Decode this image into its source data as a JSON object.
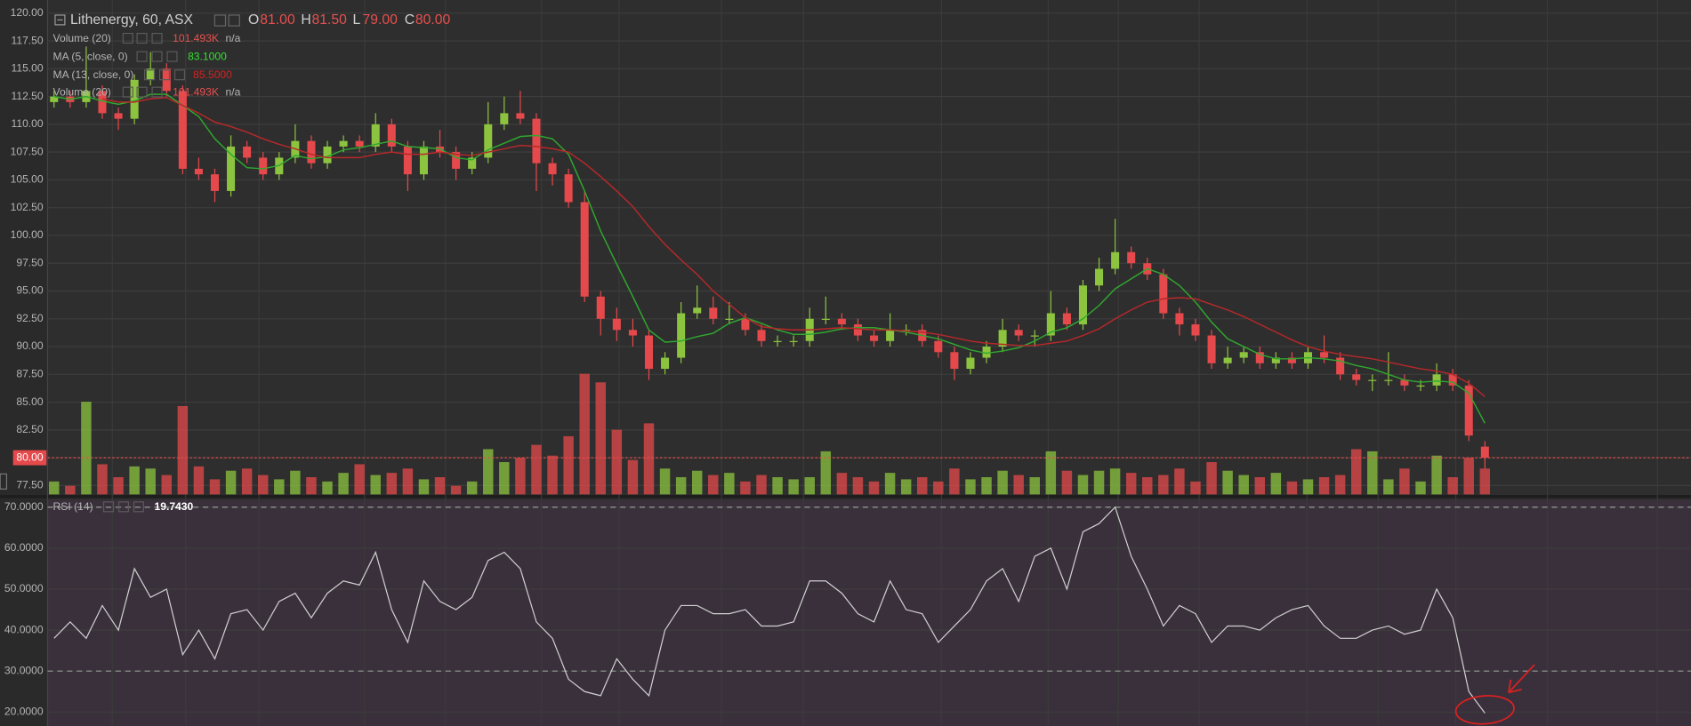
{
  "chart_data": [
    {
      "type": "candlestick",
      "title": "Lithenergy, 60, ASX",
      "ohlc": [
        {
          "name": "O",
          "label": "81.00"
        },
        {
          "name": "H",
          "label": "81.50"
        },
        {
          "name": "L",
          "label": "79.00"
        },
        {
          "name": "C",
          "label": "80.00"
        }
      ],
      "volume_legend": {
        "name": "Volume (20)",
        "label": "101.493K",
        "note": "n/a"
      },
      "open": [
        112,
        112.5,
        112,
        113,
        111,
        110.5,
        114,
        115,
        113,
        106,
        105.5,
        104,
        108,
        107,
        105.5,
        107,
        108.5,
        106.5,
        108,
        108.5,
        108,
        110,
        108,
        105.5,
        108,
        107.5,
        106,
        107,
        110,
        111,
        110.5,
        106.5,
        105.5,
        103,
        94.5,
        92.5,
        91.5,
        91,
        88,
        89,
        93,
        93.5,
        92.5,
        92.5,
        91.5,
        90.5,
        90.5,
        90.5,
        92.5,
        92.5,
        92,
        91,
        90.5,
        91.5,
        91.5,
        90.5,
        89.5,
        88,
        89,
        90,
        91.5,
        91,
        91,
        93,
        92,
        95.5,
        97,
        98.5,
        97.5,
        96.5,
        93,
        92,
        91,
        88.5,
        89,
        89.5,
        88.5,
        89,
        88.5,
        89.5,
        89,
        87.5,
        87,
        87,
        87,
        86.5,
        86.5,
        87.5,
        86.5,
        81
      ],
      "high": [
        113,
        113,
        117,
        113.5,
        111.5,
        114.5,
        116.5,
        115.5,
        113.5,
        107,
        106,
        109,
        108.5,
        107.5,
        107.5,
        110,
        109,
        108.5,
        109,
        109,
        111,
        110.5,
        108.5,
        108.5,
        109.5,
        108,
        107.5,
        112,
        112.5,
        113,
        111,
        107,
        106,
        104,
        95,
        93.5,
        92.5,
        91.5,
        89.5,
        94,
        95.5,
        94.5,
        94,
        93,
        92,
        91,
        91,
        93.5,
        94.5,
        93,
        92.5,
        91.5,
        93,
        92,
        92,
        91,
        90,
        89.5,
        90.5,
        92.5,
        92,
        91.5,
        95,
        93.5,
        96,
        98,
        101.5,
        99,
        98,
        97,
        93.5,
        92.5,
        91.5,
        90,
        90,
        90,
        89.5,
        89.5,
        90,
        91,
        89.5,
        88,
        87.5,
        89.5,
        87.5,
        87,
        88.5,
        88,
        87,
        81.5
      ],
      "low": [
        111.5,
        111.5,
        111.5,
        110.5,
        109.5,
        110,
        113.5,
        112.5,
        105.5,
        105,
        103,
        103.5,
        106.5,
        105,
        105,
        106.5,
        106,
        106,
        107.5,
        107.5,
        107.5,
        107.5,
        104,
        105,
        107,
        105,
        105.5,
        106.5,
        109.5,
        110,
        104,
        104.5,
        102.5,
        94,
        91,
        90.5,
        90,
        87,
        87.5,
        88.5,
        92.5,
        92,
        92,
        91,
        90,
        90,
        90,
        90,
        92,
        91.5,
        90.5,
        90,
        90,
        91,
        90,
        89,
        87,
        87.5,
        88.5,
        89.5,
        90.5,
        90,
        90.5,
        91.5,
        91.5,
        95,
        96.5,
        97,
        96,
        92.5,
        91,
        90.5,
        88,
        88,
        88.5,
        88,
        88,
        88,
        88,
        88.5,
        87,
        86.5,
        86,
        86.5,
        86,
        86,
        86,
        86,
        81.5,
        79
      ],
      "close": [
        112.5,
        112,
        113,
        111,
        110.5,
        114,
        115,
        113,
        106,
        105.5,
        104,
        108,
        107,
        105.5,
        107,
        108.5,
        106.5,
        108,
        108.5,
        108,
        110,
        108,
        105.5,
        108,
        107.5,
        106,
        107,
        110,
        111,
        110.5,
        106.5,
        105.5,
        103,
        94.5,
        92.5,
        91.5,
        91,
        88,
        89,
        93,
        93.5,
        92.5,
        92.5,
        91.5,
        90.5,
        90.5,
        90.5,
        92.5,
        92.5,
        92,
        91,
        90.5,
        91.5,
        91.5,
        90.5,
        89.5,
        88,
        89,
        90,
        91.5,
        91,
        91,
        93,
        92,
        95.5,
        97,
        98.5,
        97.5,
        96.5,
        93,
        92,
        91,
        88.5,
        89,
        89.5,
        88.5,
        89,
        88.5,
        89.5,
        89,
        87.5,
        87,
        87,
        87,
        86.5,
        86.5,
        87.5,
        86.5,
        82,
        80
      ],
      "volume": [
        60,
        40,
        430,
        140,
        80,
        130,
        120,
        90,
        410,
        130,
        70,
        110,
        120,
        90,
        70,
        110,
        80,
        60,
        100,
        140,
        90,
        100,
        120,
        70,
        80,
        40,
        60,
        210,
        150,
        170,
        230,
        180,
        270,
        560,
        520,
        300,
        160,
        330,
        120,
        80,
        110,
        90,
        100,
        60,
        90,
        80,
        70,
        80,
        200,
        100,
        80,
        60,
        100,
        70,
        80,
        60,
        120,
        70,
        80,
        110,
        90,
        80,
        200,
        110,
        90,
        110,
        120,
        100,
        80,
        90,
        120,
        60,
        150,
        110,
        90,
        80,
        100,
        60,
        70,
        80,
        90,
        210,
        200,
        70,
        120,
        60,
        180,
        80,
        170,
        120
      ],
      "vlim": [
        0,
        1000
      ],
      "up_color": "#8cc43f",
      "down_color": "#e5494b",
      "series": [
        {
          "name": "MA (5, close, 0)",
          "label": "83.1000",
          "color": "#2fa82f",
          "label_color": "#33e033",
          "values": [
            112.5,
            112.25,
            112.5,
            112.1,
            111.8,
            112.1,
            112.7,
            112.7,
            111.7,
            110.7,
            108.7,
            107.3,
            106.1,
            106,
            106.3,
            107.2,
            106.9,
            107.1,
            107.7,
            107.9,
            108.2,
            108.5,
            108,
            107.9,
            107.8,
            107,
            106.8,
            107.7,
            108.3,
            108.9,
            109,
            108.7,
            107.3,
            104,
            100.4,
            97.4,
            94.5,
            91.5,
            90.4,
            90.5,
            90.9,
            91.2,
            92.1,
            92.6,
            92.1,
            91.5,
            91.1,
            91.1,
            91.3,
            91.6,
            91.7,
            91.7,
            91.5,
            91.3,
            91,
            90.7,
            90.2,
            89.7,
            89.4,
            89.6,
            89.9,
            90.5,
            91.3,
            91.7,
            92.5,
            93.7,
            95.2,
            96.1,
            97,
            96.5,
            95.5,
            94,
            92.2,
            90.7,
            90,
            89.3,
            88.9,
            88.9,
            89,
            88.9,
            88.7,
            88.3,
            88,
            87.5,
            87,
            86.8,
            86.9,
            86.8,
            85.8,
            83.1
          ]
        },
        {
          "name": "MA (13, close, 0)",
          "label": "85.5000",
          "color": "#b8282a",
          "label_color": "#d42222",
          "values": [
            null,
            null,
            null,
            112.3,
            112,
            112,
            112.3,
            112.4,
            111.7,
            111,
            110.2,
            109.8,
            109.3,
            108.7,
            108.2,
            107.8,
            107.3,
            107,
            107,
            107,
            107.3,
            107.5,
            107.3,
            107.3,
            107.5,
            107.3,
            107.2,
            107.5,
            107.8,
            108.1,
            108,
            107.8,
            107.5,
            106.5,
            105.3,
            104,
            102.6,
            100.8,
            99.2,
            97.8,
            96.5,
            95,
            93.8,
            92.6,
            91.8,
            91.6,
            91.5,
            91.5,
            91.6,
            91.7,
            91.6,
            91.5,
            91.5,
            91.4,
            91.3,
            91.1,
            90.8,
            90.5,
            90.3,
            90.2,
            90.1,
            90.1,
            90.3,
            90.5,
            91,
            91.6,
            92.5,
            93.3,
            94,
            94.3,
            94.4,
            94.3,
            93.8,
            93.3,
            92.7,
            92,
            91.3,
            90.6,
            90,
            89.6,
            89.3,
            89.1,
            88.9,
            88.6,
            88.3,
            88,
            87.8,
            87.5,
            86.7,
            85.5
          ]
        }
      ],
      "last_price": {
        "value": 80,
        "label": "80.00"
      },
      "ylim": [
        76.7,
        120.7
      ],
      "yticks": [
        {
          "value": 77.5,
          "label": "77.50"
        },
        {
          "value": 80,
          "label": "80.00"
        },
        {
          "value": 82.5,
          "label": "82.50"
        },
        {
          "value": 85,
          "label": "85.00"
        },
        {
          "value": 87.5,
          "label": "87.50"
        },
        {
          "value": 90,
          "label": "90.00"
        },
        {
          "value": 92.5,
          "label": "92.50"
        },
        {
          "value": 95,
          "label": "95.00"
        },
        {
          "value": 97.5,
          "label": "97.50"
        },
        {
          "value": 100,
          "label": "100.00"
        },
        {
          "value": 102.5,
          "label": "102.50"
        },
        {
          "value": 105,
          "label": "105.00"
        },
        {
          "value": 107.5,
          "label": "107.50"
        },
        {
          "value": 110,
          "label": "110.00"
        },
        {
          "value": 112.5,
          "label": "112.50"
        },
        {
          "value": 115,
          "label": "115.00"
        },
        {
          "value": 117.5,
          "label": "117.50"
        },
        {
          "value": 120,
          "label": "120.00"
        }
      ],
      "grid": true
    },
    {
      "type": "line",
      "title": "RSI (14)",
      "label": "19.7430",
      "color": "#d0d0d0",
      "values": [
        38,
        42,
        38,
        46,
        40,
        55,
        48,
        50,
        34,
        40,
        33,
        44,
        45,
        40,
        47,
        49,
        43,
        49,
        52,
        51,
        59,
        45,
        37,
        52,
        47,
        45,
        48,
        57,
        59,
        55,
        42,
        38,
        28,
        25,
        24,
        33,
        28,
        24,
        40,
        46,
        46,
        44,
        44,
        45,
        41,
        41,
        42,
        52,
        52,
        49,
        44,
        42,
        52,
        45,
        44,
        37,
        41,
        45,
        52,
        55,
        47,
        58,
        60,
        50,
        64,
        66,
        70,
        58,
        50,
        41,
        46,
        44,
        37,
        41,
        41,
        40,
        43,
        45,
        46,
        41,
        38,
        38,
        40,
        41,
        39,
        40,
        50,
        43,
        25,
        19.743
      ],
      "bands": [
        30,
        70
      ],
      "ylim": [
        16.6,
        71.8
      ],
      "yticks": [
        {
          "value": 20,
          "label": "20.0000"
        },
        {
          "value": 30,
          "label": "30.0000"
        },
        {
          "value": 40,
          "label": "40.0000"
        },
        {
          "value": 50,
          "label": "50.0000"
        },
        {
          "value": 60,
          "label": "60.0000"
        },
        {
          "value": 70,
          "label": "70.0000"
        }
      ],
      "grid": true
    }
  ]
}
